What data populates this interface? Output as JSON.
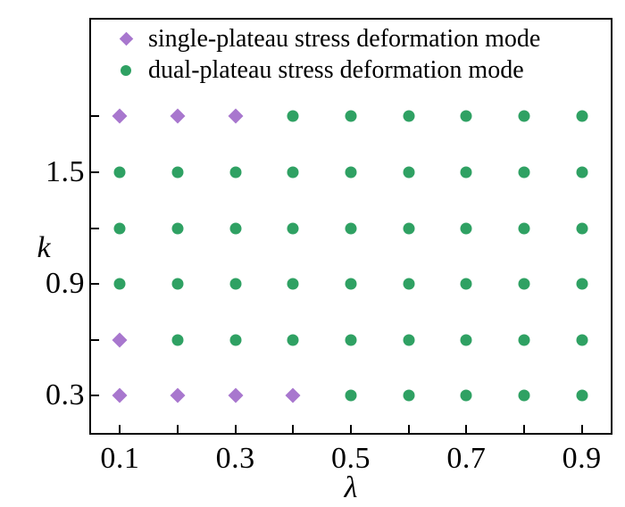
{
  "figure": {
    "background": "#ffffff",
    "frame_color": "#000000",
    "text_color": "#000000"
  },
  "chart_data": {
    "type": "scatter",
    "title": "",
    "xlabel": "λ",
    "ylabel": "k",
    "xlim": [
      0.05,
      0.95
    ],
    "ylim": [
      0.1,
      2.32
    ],
    "grid": false,
    "legend_position": "upper-center-inside",
    "x_ticks": [
      0.1,
      0.2,
      0.3,
      0.4,
      0.5,
      0.6,
      0.7,
      0.8,
      0.9
    ],
    "x_tick_labels": [
      {
        "value": 0.1,
        "label": "0.1"
      },
      {
        "value": 0.3,
        "label": "0.3"
      },
      {
        "value": 0.5,
        "label": "0.5"
      },
      {
        "value": 0.7,
        "label": "0.7"
      },
      {
        "value": 0.9,
        "label": "0.9"
      }
    ],
    "y_ticks": [
      0.3,
      0.6,
      0.9,
      1.2,
      1.5,
      1.8
    ],
    "y_tick_labels": [
      {
        "value": 0.3,
        "label": "0.3"
      },
      {
        "value": 0.9,
        "label": "0.9"
      },
      {
        "value": 1.5,
        "label": "1.5"
      }
    ],
    "series": [
      {
        "name": "single-plateau stress deformation mode",
        "marker": "diamond",
        "color": "#a877ce",
        "points": [
          [
            0.1,
            1.8
          ],
          [
            0.2,
            1.8
          ],
          [
            0.3,
            1.8
          ],
          [
            0.1,
            0.6
          ],
          [
            0.1,
            0.3
          ],
          [
            0.2,
            0.3
          ],
          [
            0.3,
            0.3
          ],
          [
            0.4,
            0.3
          ]
        ]
      },
      {
        "name": "dual-plateau stress deformation mode",
        "marker": "circle",
        "color": "#2fa163",
        "points": [
          [
            0.4,
            1.8
          ],
          [
            0.5,
            1.8
          ],
          [
            0.6,
            1.8
          ],
          [
            0.7,
            1.8
          ],
          [
            0.8,
            1.8
          ],
          [
            0.9,
            1.8
          ],
          [
            0.1,
            1.5
          ],
          [
            0.2,
            1.5
          ],
          [
            0.3,
            1.5
          ],
          [
            0.4,
            1.5
          ],
          [
            0.5,
            1.5
          ],
          [
            0.6,
            1.5
          ],
          [
            0.7,
            1.5
          ],
          [
            0.8,
            1.5
          ],
          [
            0.9,
            1.5
          ],
          [
            0.1,
            1.2
          ],
          [
            0.2,
            1.2
          ],
          [
            0.3,
            1.2
          ],
          [
            0.4,
            1.2
          ],
          [
            0.5,
            1.2
          ],
          [
            0.6,
            1.2
          ],
          [
            0.7,
            1.2
          ],
          [
            0.8,
            1.2
          ],
          [
            0.9,
            1.2
          ],
          [
            0.1,
            0.9
          ],
          [
            0.2,
            0.9
          ],
          [
            0.3,
            0.9
          ],
          [
            0.4,
            0.9
          ],
          [
            0.5,
            0.9
          ],
          [
            0.6,
            0.9
          ],
          [
            0.7,
            0.9
          ],
          [
            0.8,
            0.9
          ],
          [
            0.9,
            0.9
          ],
          [
            0.2,
            0.6
          ],
          [
            0.3,
            0.6
          ],
          [
            0.4,
            0.6
          ],
          [
            0.5,
            0.6
          ],
          [
            0.6,
            0.6
          ],
          [
            0.7,
            0.6
          ],
          [
            0.8,
            0.6
          ],
          [
            0.9,
            0.6
          ],
          [
            0.5,
            0.3
          ],
          [
            0.6,
            0.3
          ],
          [
            0.7,
            0.3
          ],
          [
            0.8,
            0.3
          ],
          [
            0.9,
            0.3
          ]
        ]
      }
    ]
  }
}
